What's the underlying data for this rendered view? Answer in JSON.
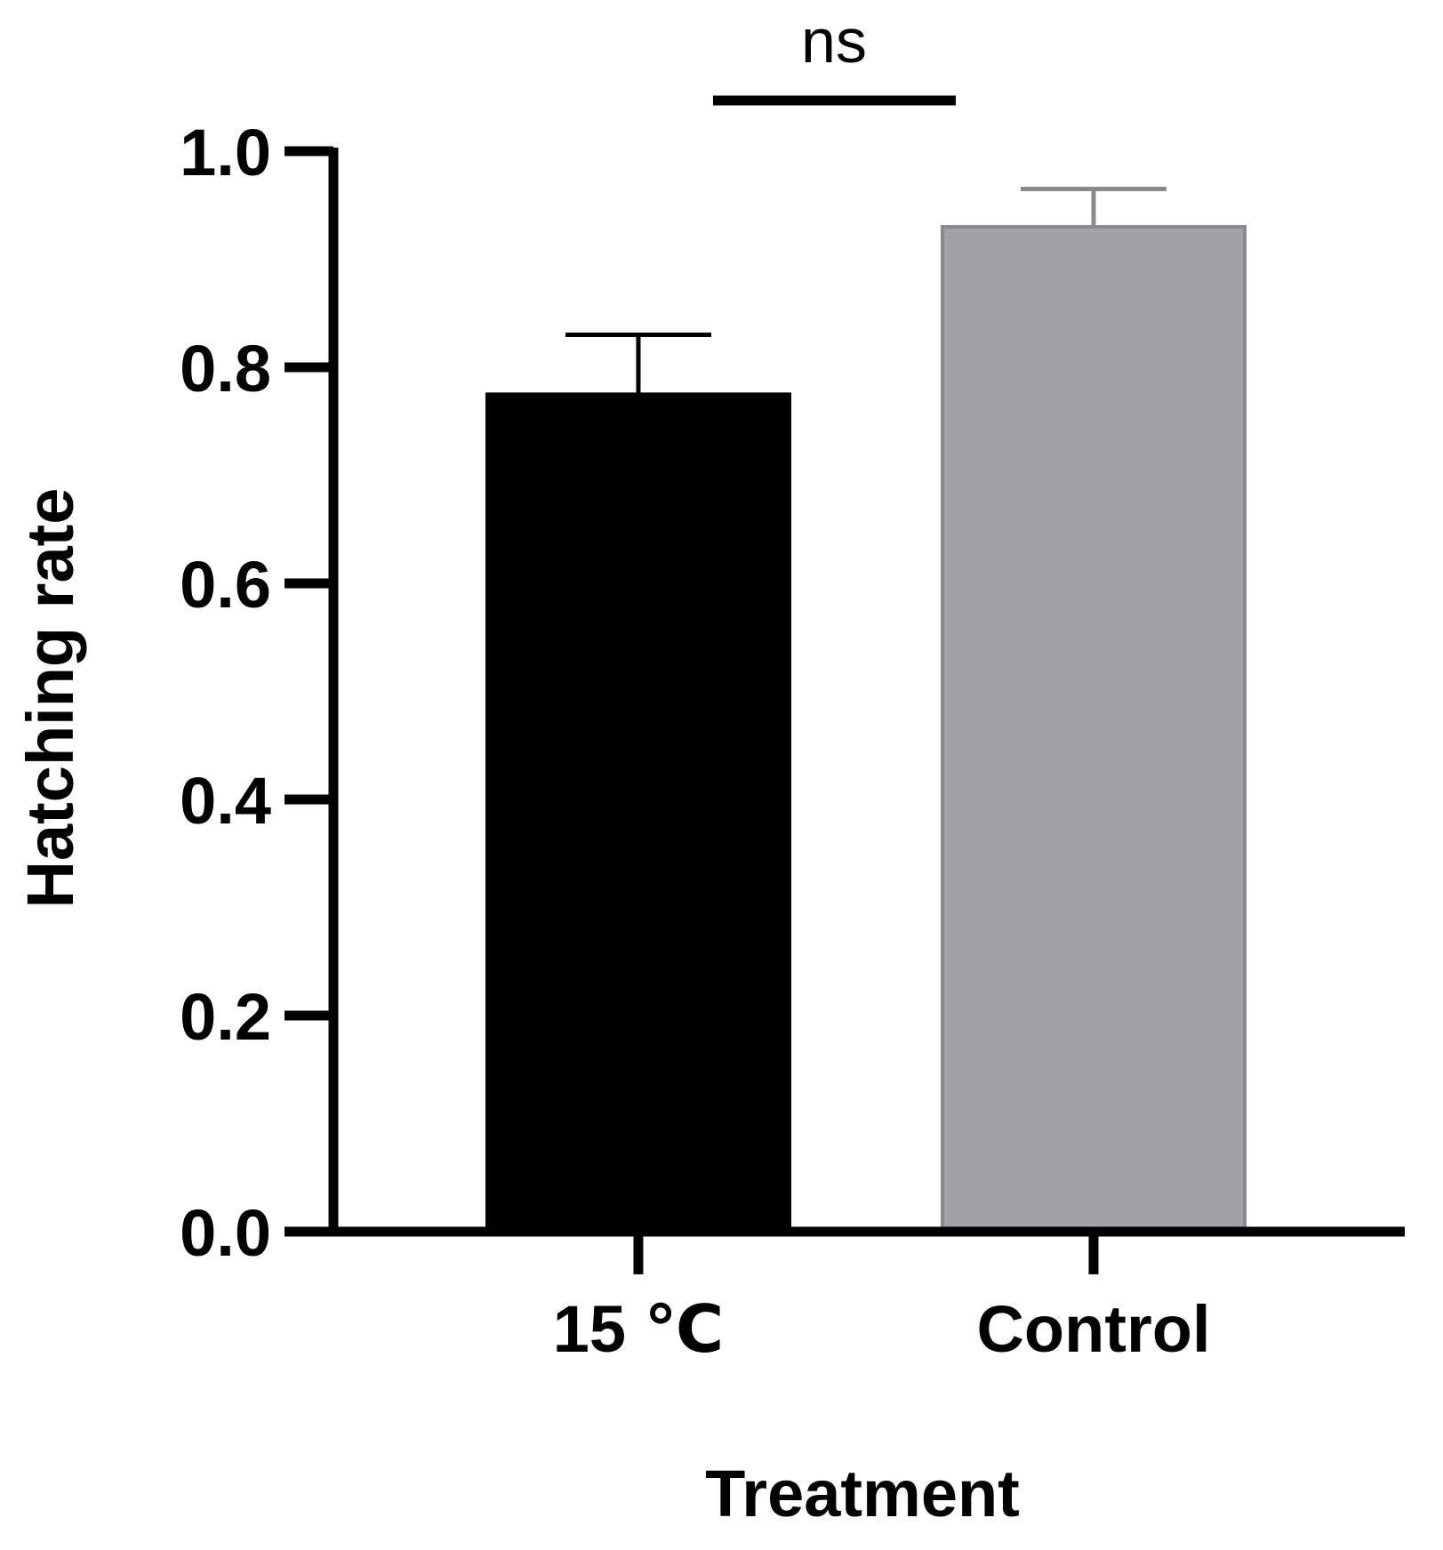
{
  "chart_data": {
    "type": "bar",
    "categories": [
      "15 ℃",
      "Control"
    ],
    "values": [
      0.775,
      0.93
    ],
    "errors": [
      0.055,
      0.035
    ],
    "colors": [
      "#000000",
      "#a2a1a6"
    ],
    "edge_colors": [
      "#000000",
      "#8a898e"
    ],
    "xlabel": "Treatment",
    "ylabel": "Hatching rate",
    "ylim": [
      0,
      1.0
    ],
    "yticks": [
      "0.0",
      "0.2",
      "0.4",
      "0.6",
      "0.8",
      "1.0"
    ],
    "ytick_values": [
      0,
      0.2,
      0.4,
      0.6,
      0.8,
      1.0
    ],
    "grid": false,
    "annotation": {
      "text": "ns",
      "between": [
        0,
        1
      ]
    }
  }
}
